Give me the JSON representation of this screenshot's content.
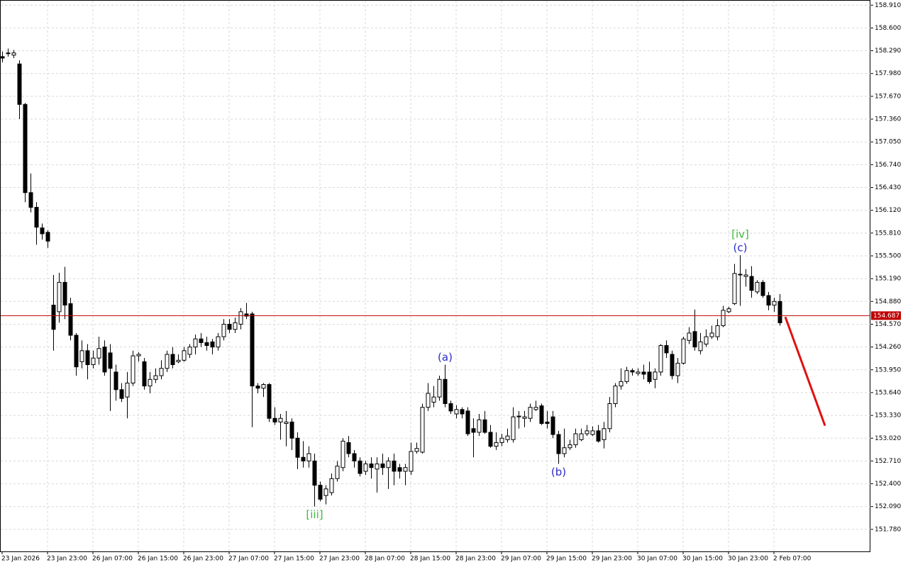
{
  "chart_data": {
    "type": "candlestick",
    "categories": [
      "23 Jan 2026",
      null,
      null,
      null,
      null,
      null,
      null,
      null,
      "23 Jan 23:00",
      null,
      null,
      null,
      null,
      null,
      null,
      null,
      "26 Jan 07:00",
      null,
      null,
      null,
      null,
      null,
      null,
      null,
      "26 Jan 15:00",
      null,
      null,
      null,
      null,
      null,
      null,
      null,
      "26 Jan 23:00",
      null,
      null,
      null,
      null,
      null,
      null,
      null,
      "27 Jan 07:00",
      null,
      null,
      null,
      null,
      null,
      null,
      null,
      "27 Jan 15:00",
      null,
      null,
      null,
      null,
      null,
      null,
      null,
      "27 Jan 23:00",
      null,
      null,
      null,
      null,
      null,
      null,
      null,
      "28 Jan 07:00",
      null,
      null,
      null,
      null,
      null,
      null,
      null,
      "28 Jan 15:00",
      null,
      null,
      null,
      null,
      null,
      null,
      null,
      "28 Jan 23:00",
      null,
      null,
      null,
      null,
      null,
      null,
      null,
      "29 Jan 07:00",
      null,
      null,
      null,
      null,
      null,
      null,
      null,
      "29 Jan 15:00",
      null,
      null,
      null,
      null,
      null,
      null,
      null,
      "29 Jan 23:00",
      null,
      null,
      null,
      null,
      null,
      null,
      null,
      "30 Jan 07:00",
      null,
      null,
      null,
      null,
      null,
      null,
      null,
      "30 Jan 15:00",
      null,
      null,
      null,
      null,
      null,
      null,
      null,
      "30 Jan 23:00",
      null,
      null,
      null,
      null,
      null,
      null,
      null,
      "2 Feb 07:00",
      null
    ],
    "open": [
      158.21,
      158.25,
      158.23,
      158.11,
      157.56,
      156.36,
      156.16,
      155.88,
      155.82,
      154.83,
      154.74,
      155.14,
      154.85,
      154.42,
      154.06,
      154.21,
      154.02,
      154.11,
      154.26,
      154.18,
      153.92,
      153.68,
      153.58,
      153.77,
      154.14,
      154.06,
      153.73,
      153.82,
      153.87,
      153.97,
      154.16,
      154.06,
      154.08,
      154.16,
      154.26,
      154.37,
      154.32,
      154.33,
      154.26,
      154.4,
      154.57,
      154.5,
      154.57,
      154.71,
      154.71,
      153.73,
      153.7,
      153.75,
      153.29,
      153.24,
      153.22,
      153.24,
      153.02,
      152.76,
      152.71,
      152.71,
      152.38,
      152.24,
      152.28,
      152.47,
      152.62,
      152.96,
      152.81,
      152.71,
      152.57,
      152.67,
      152.6,
      152.67,
      152.62,
      152.71,
      152.62,
      152.57,
      152.57,
      152.84,
      152.83,
      153.44,
      153.51,
      153.58,
      153.82,
      153.49,
      153.35,
      153.41,
      153.39,
      153.15,
      153.1,
      153.27,
      153.1,
      152.91,
      152.96,
      153.0,
      153.0,
      153.31,
      153.29,
      153.29,
      153.41,
      153.46,
      153.24,
      153.31,
      153.07,
      152.81,
      152.89,
      152.93,
      153.0,
      153.08,
      153.07,
      153.12,
      153.0,
      153.15,
      153.49,
      153.73,
      153.79,
      153.94,
      153.9,
      153.92,
      153.92,
      153.82,
      153.92,
      154.28,
      154.16,
      153.87,
      154.04,
      154.35,
      154.47,
      154.21,
      154.3,
      154.4,
      154.4,
      154.55,
      154.74,
      154.85,
      155.24,
      155.22,
      155.22,
      155.01,
      155.14,
      154.96,
      154.83,
      154.88
    ],
    "high": [
      158.28,
      158.32,
      158.3,
      158.16,
      157.58,
      156.62,
      156.23,
      155.94,
      155.85,
      155.24,
      155.27,
      155.35,
      154.93,
      154.45,
      154.35,
      154.3,
      154.21,
      154.4,
      154.35,
      154.3,
      154.02,
      153.77,
      153.92,
      154.21,
      154.19,
      154.11,
      153.92,
      153.97,
      154.08,
      154.21,
      154.26,
      154.16,
      154.26,
      154.3,
      154.43,
      154.45,
      154.4,
      154.37,
      154.45,
      154.64,
      154.64,
      154.66,
      154.79,
      154.86,
      154.74,
      153.77,
      153.77,
      153.77,
      153.44,
      153.35,
      153.39,
      153.29,
      153.1,
      152.98,
      152.91,
      152.81,
      152.43,
      152.38,
      152.54,
      152.71,
      153.02,
      153.05,
      152.86,
      152.76,
      152.71,
      152.76,
      152.76,
      152.81,
      152.76,
      152.81,
      152.67,
      152.67,
      152.96,
      152.96,
      153.49,
      153.77,
      153.73,
      153.87,
      154.02,
      153.53,
      153.47,
      153.44,
      153.44,
      153.29,
      153.35,
      153.39,
      153.2,
      153.1,
      153.08,
      153.15,
      153.44,
      153.39,
      153.39,
      153.49,
      153.53,
      153.49,
      153.39,
      153.39,
      153.12,
      153.15,
      153.0,
      153.15,
      153.15,
      153.2,
      153.18,
      153.2,
      153.24,
      153.58,
      153.77,
      153.97,
      153.99,
      153.97,
      153.97,
      154.02,
      154.06,
      153.97,
      154.3,
      154.35,
      154.21,
      154.11,
      154.4,
      154.53,
      154.77,
      154.45,
      154.5,
      154.55,
      154.64,
      154.82,
      154.81,
      155.39,
      155.51,
      155.32,
      155.36,
      155.17,
      155.17,
      155.01,
      154.93,
      154.98
    ],
    "low": [
      158.13,
      158.21,
      158.19,
      157.36,
      156.23,
      156.09,
      155.65,
      155.72,
      155.61,
      154.21,
      154.59,
      154.64,
      154.35,
      153.87,
      153.97,
      153.82,
      153.97,
      154.02,
      153.87,
      153.39,
      153.53,
      153.51,
      153.29,
      153.73,
      154.06,
      153.68,
      153.63,
      153.77,
      153.82,
      153.92,
      153.97,
      154.04,
      154.06,
      154.11,
      154.16,
      154.26,
      154.21,
      154.16,
      154.21,
      154.35,
      154.45,
      154.45,
      154.5,
      154.64,
      153.17,
      153.63,
      153.58,
      153.24,
      153.2,
      153.0,
      152.91,
      152.86,
      152.6,
      152.62,
      152.62,
      152.09,
      152.16,
      152.12,
      152.24,
      152.43,
      152.57,
      152.76,
      152.62,
      152.5,
      152.52,
      152.47,
      152.28,
      152.52,
      152.33,
      152.38,
      152.47,
      152.38,
      152.52,
      152.81,
      152.81,
      153.39,
      153.44,
      153.53,
      153.44,
      153.35,
      153.29,
      153.29,
      153.05,
      152.76,
      153.05,
      153.08,
      152.89,
      152.86,
      152.91,
      152.96,
      152.96,
      153.15,
      153.17,
      153.24,
      153.39,
      153.2,
      153.15,
      153.02,
      152.67,
      152.76,
      152.86,
      152.89,
      152.98,
      153.05,
      153.05,
      152.96,
      152.88,
      153.1,
      153.44,
      153.68,
      153.76,
      153.87,
      153.87,
      153.82,
      153.76,
      153.7,
      153.87,
      154.11,
      153.82,
      153.77,
      154.02,
      154.3,
      154.21,
      154.16,
      154.26,
      154.37,
      154.35,
      154.53,
      154.72,
      154.83,
      154.82,
      155.08,
      154.93,
      154.98,
      154.93,
      154.76,
      154.74,
      154.55
    ],
    "close": [
      158.19,
      158.26,
      158.26,
      157.56,
      156.36,
      156.16,
      155.89,
      155.8,
      155.7,
      154.5,
      155.14,
      154.83,
      154.42,
      153.99,
      154.21,
      154.02,
      154.11,
      154.24,
      153.92,
      153.97,
      153.68,
      153.56,
      153.77,
      154.14,
      154.16,
      153.73,
      153.82,
      153.87,
      153.97,
      154.16,
      154.02,
      154.08,
      154.21,
      154.26,
      154.37,
      154.32,
      154.28,
      154.26,
      154.4,
      154.57,
      154.5,
      154.59,
      154.74,
      154.68,
      153.73,
      153.7,
      153.75,
      153.29,
      153.24,
      153.29,
      153.24,
      153.02,
      152.76,
      152.71,
      152.81,
      152.38,
      152.19,
      152.33,
      152.47,
      152.64,
      152.98,
      152.81,
      152.71,
      152.54,
      152.67,
      152.62,
      152.67,
      152.62,
      152.71,
      152.57,
      152.57,
      152.62,
      152.84,
      152.88,
      153.44,
      153.63,
      153.58,
      153.82,
      153.49,
      153.39,
      153.41,
      153.35,
      153.08,
      153.1,
      153.27,
      153.1,
      152.91,
      152.96,
      153.02,
      153.05,
      153.31,
      153.32,
      153.31,
      153.44,
      153.44,
      153.22,
      153.22,
      153.07,
      152.81,
      152.89,
      152.93,
      153.08,
      153.08,
      153.12,
      153.12,
      152.98,
      153.15,
      153.49,
      153.73,
      153.79,
      153.94,
      153.92,
      153.92,
      153.89,
      153.79,
      153.92,
      154.28,
      154.18,
      153.87,
      154.04,
      154.37,
      154.45,
      154.26,
      154.33,
      154.4,
      154.45,
      154.55,
      154.76,
      154.78,
      155.26,
      155.25,
      155.24,
      155.03,
      155.14,
      154.96,
      154.83,
      154.88,
      154.59
    ],
    "bull_color": "#ffffff",
    "bear_color": "#000000",
    "outline_color": "#000000",
    "ylim": [
      151.48,
      158.98
    ],
    "yticks": [
      {
        "value": 158.91,
        "label": "158.910"
      },
      {
        "value": 158.6,
        "label": "158.600"
      },
      {
        "value": 158.29,
        "label": "158.290"
      },
      {
        "value": 157.98,
        "label": "157.980"
      },
      {
        "value": 157.67,
        "label": "157.670"
      },
      {
        "value": 157.36,
        "label": "157.360"
      },
      {
        "value": 157.05,
        "label": "157.050"
      },
      {
        "value": 156.74,
        "label": "156.740"
      },
      {
        "value": 156.43,
        "label": "156.430"
      },
      {
        "value": 156.12,
        "label": "156.120"
      },
      {
        "value": 155.81,
        "label": "155.810"
      },
      {
        "value": 155.5,
        "label": "155.500"
      },
      {
        "value": 155.19,
        "label": "155.190"
      },
      {
        "value": 154.88,
        "label": "154.880"
      },
      {
        "value": 154.57,
        "label": "154.570"
      },
      {
        "value": 154.26,
        "label": "154.260"
      },
      {
        "value": 153.95,
        "label": "153.950"
      },
      {
        "value": 153.64,
        "label": "153.640"
      },
      {
        "value": 153.33,
        "label": "153.330"
      },
      {
        "value": 153.02,
        "label": "153.020"
      },
      {
        "value": 152.71,
        "label": "152.710"
      },
      {
        "value": 152.4,
        "label": "152.400"
      },
      {
        "value": 152.09,
        "label": "152.090"
      },
      {
        "value": 151.78,
        "label": "151.780"
      }
    ],
    "grid": true,
    "current_price": 154.687,
    "current_price_color": "#c00000",
    "annotations": [
      {
        "text": "[iii]",
        "color": "#3cb93c",
        "index": 55,
        "placement": "below"
      },
      {
        "text": "(a)",
        "color": "#2a2acf",
        "index": 78,
        "placement": "above"
      },
      {
        "text": "(b)",
        "color": "#2a2acf",
        "index": 98,
        "placement": "below"
      },
      {
        "text": "(c)",
        "color": "#2a2acf",
        "index": 130,
        "placement": "above"
      },
      {
        "text": "[iv]",
        "color": "#3cb93c",
        "index": 130,
        "placement": "above"
      }
    ],
    "forecast": {
      "from_index": 138,
      "from_price": 154.67,
      "to_index": 145,
      "to_price": 153.19,
      "color": "#e01010"
    }
  }
}
